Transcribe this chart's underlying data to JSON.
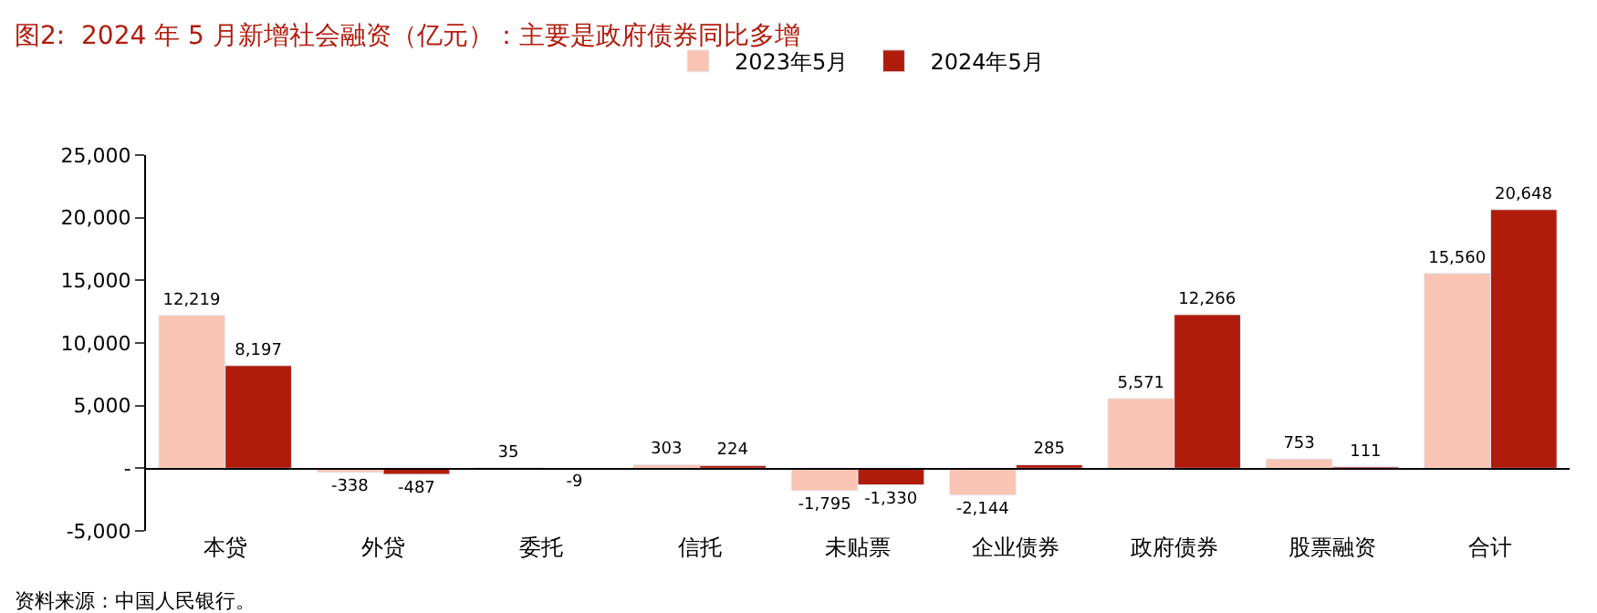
{
  "chart_data": {
    "type": "bar",
    "title": "图2:  2024 年 5 月新增社会融资（亿元）：主要是政府债券同比多增",
    "categories": [
      "本贷",
      "外贷",
      "委托",
      "信托",
      "未贴票",
      "企业债券",
      "政府债券",
      "股票融资",
      "合计"
    ],
    "series": [
      {
        "name": "2023年5月",
        "color": "#f9c4b4",
        "values": [
          12219,
          -338,
          35,
          303,
          -1795,
          -2144,
          5571,
          753,
          15560
        ],
        "value_labels": [
          "12,219",
          "-338",
          "35",
          "303",
          "-1,795",
          "-2,144",
          "5,571",
          "753",
          "15,560"
        ]
      },
      {
        "name": "2024年5月",
        "color": "#b01c0c",
        "values": [
          8197,
          -487,
          -9,
          224,
          -1330,
          285,
          12266,
          111,
          20648
        ],
        "value_labels": [
          "8,197",
          "-487",
          "-9",
          "224",
          "-1,330",
          "285",
          "12,266",
          "111",
          "20,648"
        ]
      }
    ],
    "ylim": [
      -5000,
      25000
    ],
    "yticks": [
      {
        "value": -5000,
        "label": "-5,000"
      },
      {
        "value": 0,
        "label": "-"
      },
      {
        "value": 5000,
        "label": "5,000"
      },
      {
        "value": 10000,
        "label": "10,000"
      },
      {
        "value": 15000,
        "label": "15,000"
      },
      {
        "value": 20000,
        "label": "20,000"
      },
      {
        "value": 25000,
        "label": "25,000"
      }
    ],
    "legend": "top",
    "annotations": [
      "资料来源：中国人民银行。"
    ]
  }
}
